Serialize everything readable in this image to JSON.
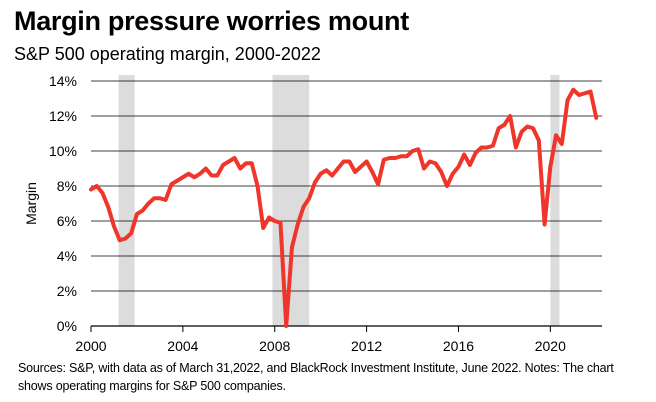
{
  "header": {
    "title": "Margin pressure worries mount",
    "subtitle": "S&P 500 operating margin, 2000-2022"
  },
  "footnote": "Sources: S&P, with data as of March 31,2022, and BlackRock Investment Institute, June 2022. Notes: The chart shows operating margins for S&P 500 companies.",
  "colors": {
    "line": "#f0352a",
    "recession": "#dcdcdc",
    "grid": "#000000"
  },
  "chart_data": {
    "type": "line",
    "title": "Margin pressure worries mount",
    "subtitle": "S&P 500 operating margin, 2000-2022",
    "ylabel": "Margin",
    "xlabel": "",
    "xlim": [
      2000,
      2022.25
    ],
    "ylim": [
      0,
      14
    ],
    "x_ticks": [
      2000,
      2004,
      2008,
      2012,
      2016,
      2020
    ],
    "y_ticks": [
      0,
      2,
      4,
      6,
      8,
      10,
      12,
      14
    ],
    "x_tick_labels": [
      "2000",
      "2004",
      "2008",
      "2012",
      "2016",
      "2020"
    ],
    "y_tick_labels": [
      "0%",
      "2%",
      "4%",
      "6%",
      "8%",
      "10%",
      "12%",
      "14%"
    ],
    "grid": "horizontal",
    "recession_shading": [
      [
        2001.2,
        2001.9
      ],
      [
        2007.9,
        2009.5
      ],
      [
        2020.0,
        2020.4
      ]
    ],
    "series": [
      {
        "x": [
          2000.0,
          2000.25,
          2000.5,
          2000.75,
          2001.0,
          2001.25,
          2001.5,
          2001.75,
          2002.0,
          2002.25,
          2002.5,
          2002.75,
          2003.0,
          2003.25,
          2003.5,
          2003.75,
          2004.0,
          2004.25,
          2004.5,
          2004.75,
          2005.0,
          2005.25,
          2005.5,
          2005.75,
          2006.0,
          2006.25,
          2006.5,
          2006.75,
          2007.0,
          2007.25,
          2007.5,
          2007.75,
          2008.0,
          2008.25,
          2008.5,
          2008.75,
          2009.0,
          2009.25,
          2009.5,
          2009.75,
          2010.0,
          2010.25,
          2010.5,
          2010.75,
          2011.0,
          2011.25,
          2011.5,
          2011.75,
          2012.0,
          2012.25,
          2012.5,
          2012.75,
          2013.0,
          2013.25,
          2013.5,
          2013.75,
          2014.0,
          2014.25,
          2014.5,
          2014.75,
          2015.0,
          2015.25,
          2015.5,
          2015.75,
          2016.0,
          2016.25,
          2016.5,
          2016.75,
          2017.0,
          2017.25,
          2017.5,
          2017.75,
          2018.0,
          2018.25,
          2018.5,
          2018.75,
          2019.0,
          2019.25,
          2019.5,
          2019.75,
          2020.0,
          2020.25,
          2020.5,
          2020.75,
          2021.0,
          2021.25,
          2021.5,
          2021.75,
          2022.0
        ],
        "y": [
          7.8,
          8.0,
          7.6,
          6.8,
          5.7,
          4.9,
          5.0,
          5.3,
          6.4,
          6.6,
          7.0,
          7.3,
          7.3,
          7.2,
          8.1,
          8.3,
          8.5,
          8.7,
          8.5,
          8.7,
          9.0,
          8.6,
          8.6,
          9.2,
          9.4,
          9.6,
          9.0,
          9.3,
          9.3,
          8.0,
          5.6,
          6.2,
          6.0,
          5.9,
          0.0,
          4.5,
          5.8,
          6.8,
          7.3,
          8.2,
          8.7,
          8.9,
          8.6,
          9.0,
          9.4,
          9.4,
          8.8,
          9.1,
          9.4,
          8.8,
          8.1,
          9.5,
          9.6,
          9.6,
          9.7,
          9.7,
          10.0,
          10.1,
          9.0,
          9.4,
          9.3,
          8.8,
          8.0,
          8.7,
          9.1,
          9.8,
          9.2,
          9.9,
          10.2,
          10.2,
          10.3,
          11.3,
          11.5,
          12.0,
          10.2,
          11.1,
          11.4,
          11.3,
          10.6,
          5.8,
          9.1,
          10.9,
          10.4,
          12.9,
          13.5,
          13.2,
          13.3,
          13.4,
          11.9
        ]
      }
    ]
  }
}
